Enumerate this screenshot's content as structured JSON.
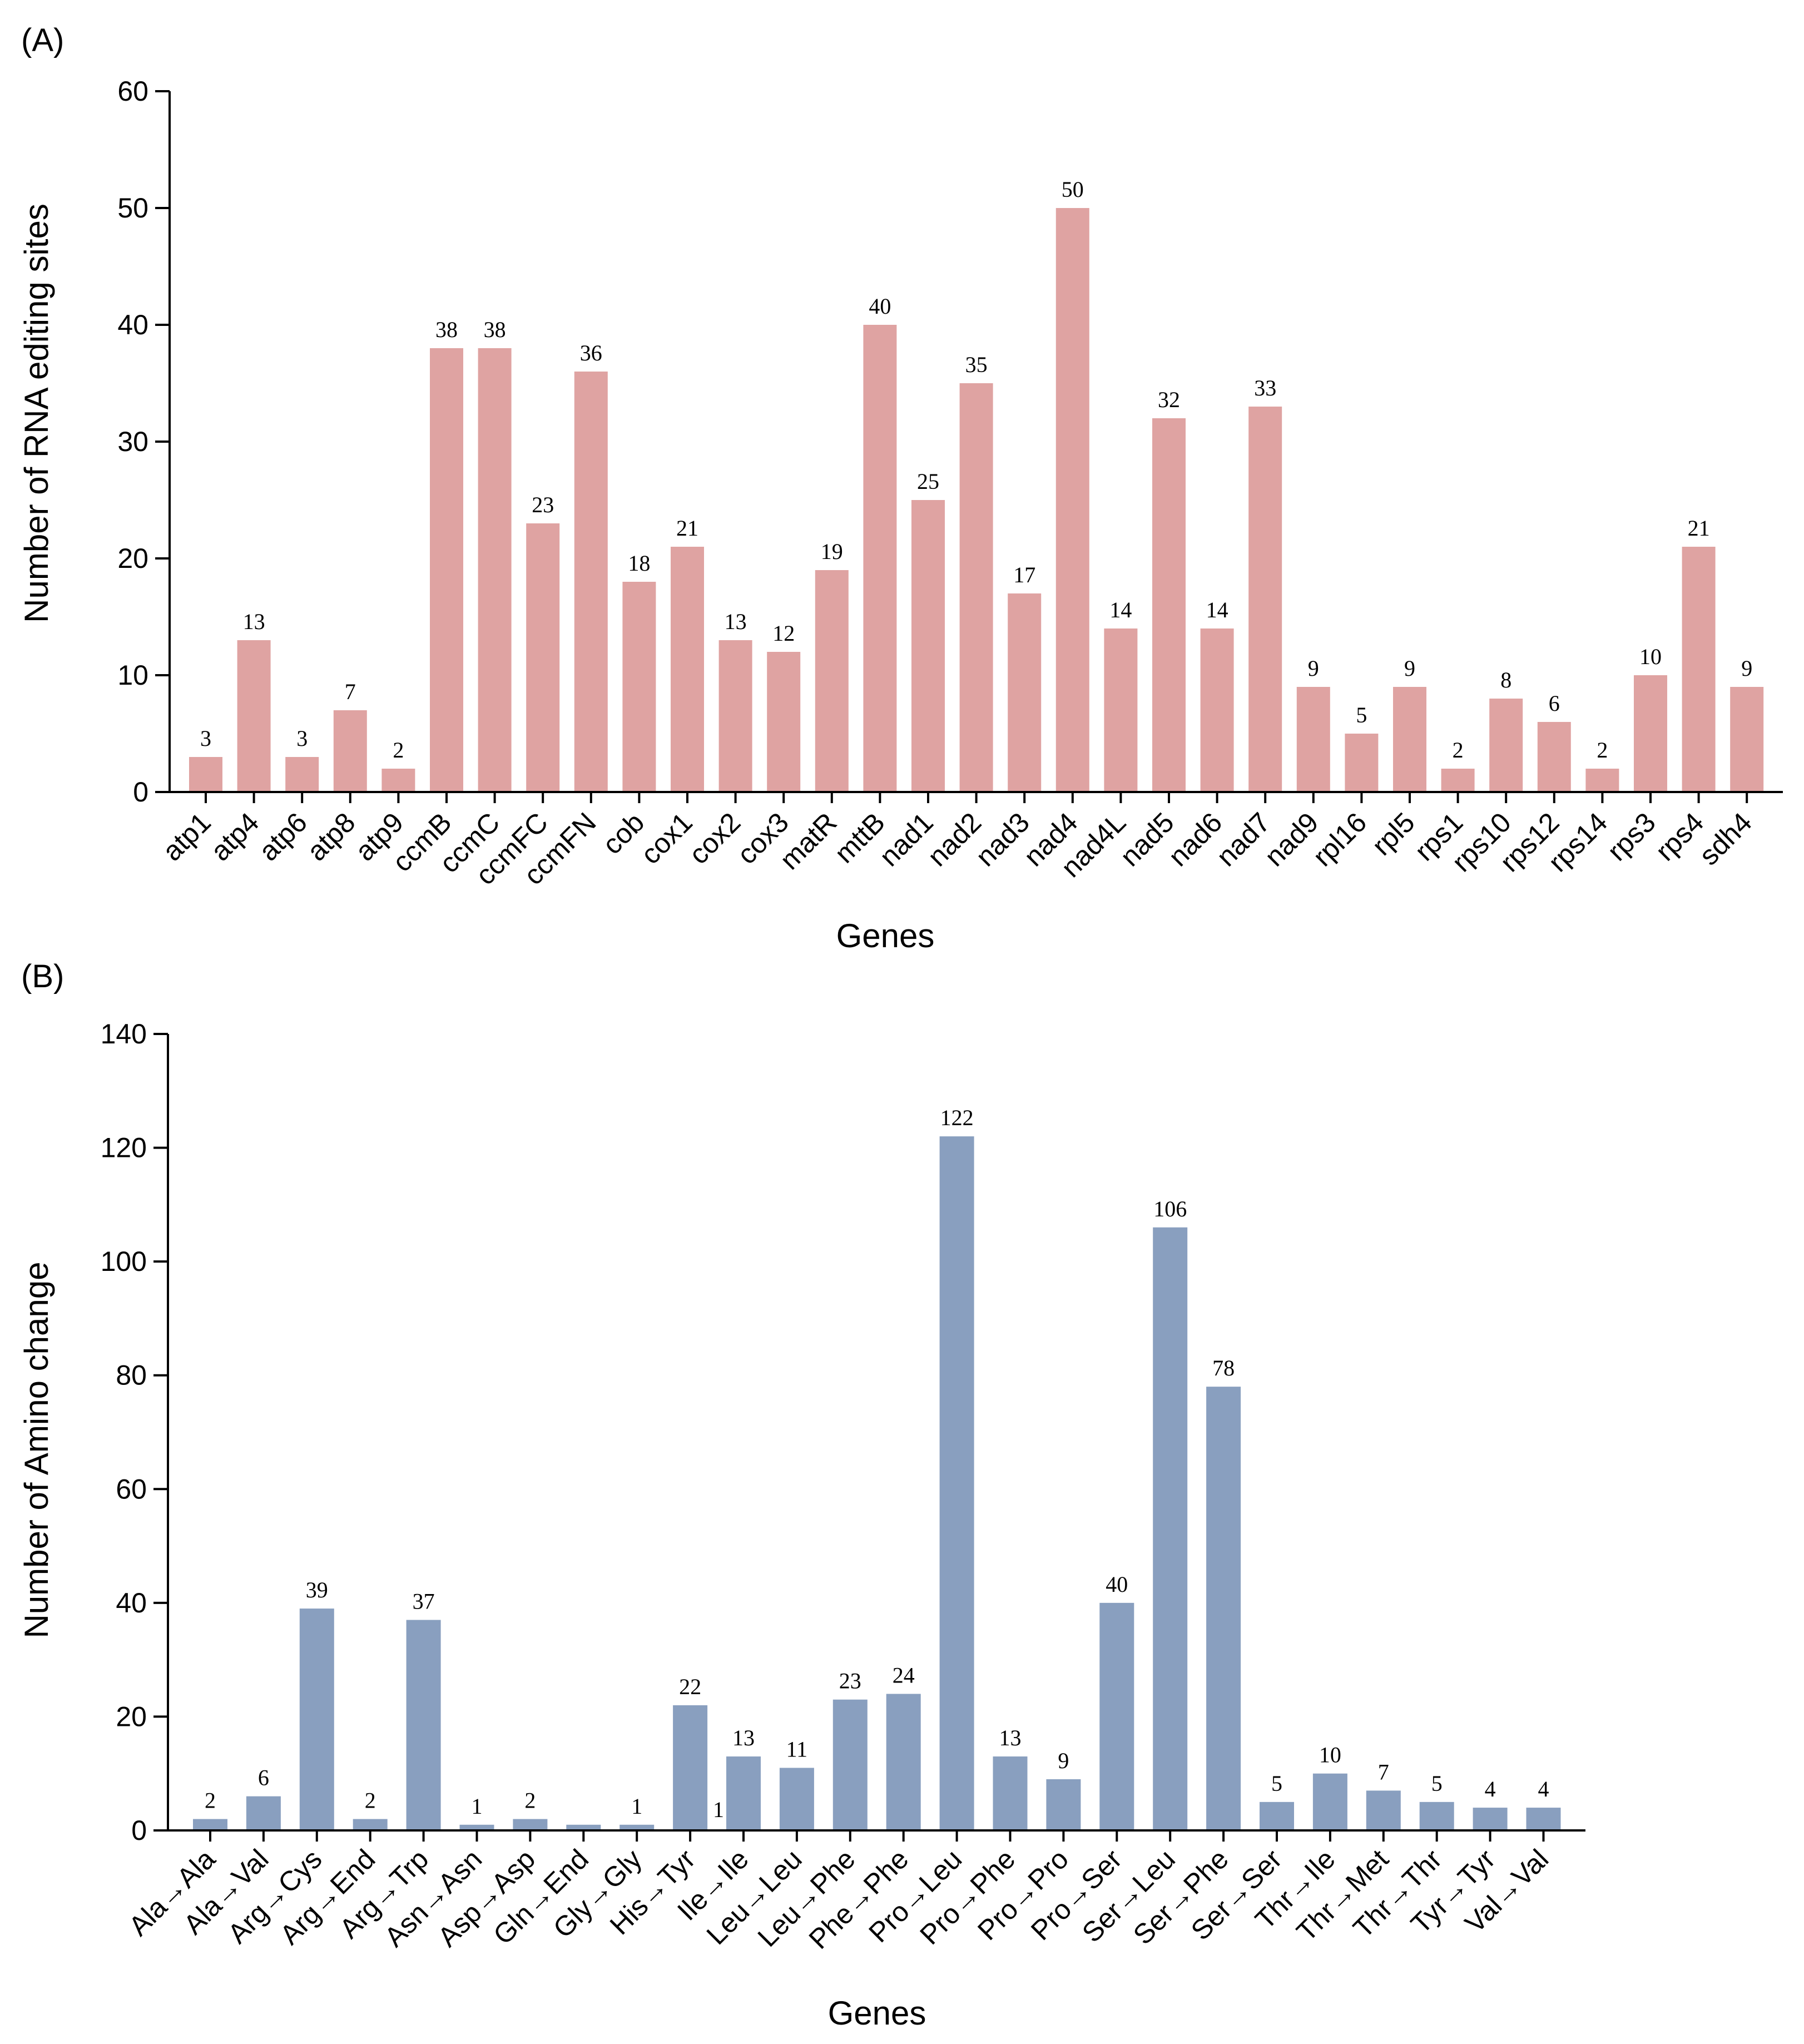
{
  "colors": {
    "panel_a_bar": "#dfa3a2",
    "panel_b_bar": "#899fbf",
    "axis": "#000000"
  },
  "chart_data": [
    {
      "panel_label": "(A)",
      "type": "bar",
      "xlabel": "Genes",
      "ylabel": "Number of RNA editing sites",
      "ylim": [
        0,
        60
      ],
      "yticks": [
        0,
        10,
        20,
        30,
        40,
        50,
        60
      ],
      "grid": false,
      "legend": "none",
      "categories": [
        "atp1",
        "atp4",
        "atp6",
        "atp8",
        "atp9",
        "ccmB",
        "ccmC",
        "ccmFC",
        "ccmFN",
        "cob",
        "cox1",
        "cox2",
        "cox3",
        "matR",
        "mttB",
        "nad1",
        "nad2",
        "nad3",
        "nad4",
        "nad4L",
        "nad5",
        "nad6",
        "nad7",
        "nad9",
        "rpl16",
        "rpl5",
        "rps1",
        "rps10",
        "rps12",
        "rps14",
        "rps3",
        "rps4",
        "sdh4"
      ],
      "values": [
        3,
        13,
        3,
        7,
        2,
        38,
        38,
        23,
        36,
        18,
        21,
        13,
        12,
        19,
        40,
        25,
        35,
        17,
        50,
        14,
        32,
        14,
        33,
        9,
        5,
        9,
        2,
        8,
        6,
        2,
        10,
        21,
        9
      ]
    },
    {
      "panel_label": "(B)",
      "type": "bar",
      "xlabel": "Genes",
      "ylabel": "Number of Amino change",
      "ylim": [
        0,
        140
      ],
      "yticks": [
        0,
        20,
        40,
        60,
        80,
        100,
        120,
        140
      ],
      "grid": false,
      "legend": "none",
      "categories": [
        "Ala→Ala",
        "Ala→Val",
        "Arg→Cys",
        "Arg→End",
        "Arg→Trp",
        "Asn→Asn",
        "Asp→Asp",
        "Gln→End",
        "Gly→Gly",
        "His→Tyr",
        "Ile→Ile",
        "Leu→Leu",
        "Leu→Phe",
        "Phe→Phe",
        "Pro→Leu",
        "Pro→Phe",
        "Pro→Pro",
        "Pro→Ser",
        "Ser→Leu",
        "Ser→Phe",
        "Ser→Ser",
        "Thr→Ile",
        "Thr→Met",
        "Thr→Thr",
        "Tyr→Tyr",
        "Val→Val"
      ],
      "values": [
        2,
        6,
        39,
        2,
        37,
        1,
        2,
        1,
        1,
        22,
        13,
        11,
        23,
        24,
        122,
        13,
        9,
        40,
        106,
        78,
        5,
        10,
        7,
        5,
        4,
        4
      ],
      "data_labels": [
        "2",
        "6",
        "39",
        "2",
        "37",
        "1",
        "2",
        "",
        "1",
        "22",
        "13",
        "11",
        "23",
        "24",
        "122",
        "13",
        "9",
        "40",
        "106",
        "78",
        "5",
        "10",
        "7",
        "5",
        "4",
        "4"
      ],
      "annotations": [
        {
          "text": "1",
          "near_category": "Ile→Ile"
        }
      ]
    }
  ]
}
